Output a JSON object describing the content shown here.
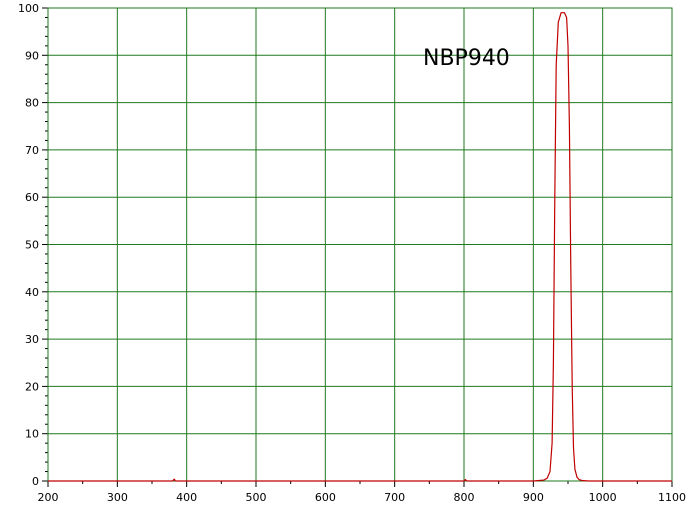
{
  "chart_data": {
    "type": "line",
    "title": "",
    "xlabel": "",
    "ylabel": "",
    "xlim": [
      200,
      1100
    ],
    "ylim": [
      0,
      100
    ],
    "x_ticks": [
      200,
      300,
      400,
      500,
      600,
      700,
      800,
      900,
      1000,
      1100
    ],
    "y_ticks": [
      0,
      10,
      20,
      30,
      40,
      50,
      60,
      70,
      80,
      90,
      100
    ],
    "x_tick_labels": [
      "200",
      "300",
      "400",
      "500",
      "600",
      "700",
      "800",
      "900",
      "1000",
      "1100"
    ],
    "y_tick_labels": [
      "0",
      "10",
      "20",
      "30",
      "40",
      "50",
      "60",
      "70",
      "80",
      "90",
      "100"
    ],
    "grid": true,
    "legend": "none",
    "annotation": "NBP940",
    "colors": {
      "grid": "#1e7a1e",
      "series": "#c00000",
      "frame": "#1e7a1e"
    },
    "series": [
      {
        "values": [
          [
            200,
            0
          ],
          [
            380,
            0
          ],
          [
            382,
            0.4
          ],
          [
            384,
            0
          ],
          [
            800,
            0
          ],
          [
            802,
            0.3
          ],
          [
            804,
            0
          ],
          [
            900,
            0
          ],
          [
            915,
            0.2
          ],
          [
            920,
            0.6
          ],
          [
            924,
            2
          ],
          [
            927,
            8
          ],
          [
            929,
            25
          ],
          [
            931,
            60
          ],
          [
            933,
            88
          ],
          [
            936,
            97
          ],
          [
            940,
            99
          ],
          [
            945,
            99
          ],
          [
            948,
            98
          ],
          [
            950,
            92
          ],
          [
            952,
            75
          ],
          [
            954,
            45
          ],
          [
            956,
            20
          ],
          [
            958,
            7
          ],
          [
            960,
            2.5
          ],
          [
            963,
            0.8
          ],
          [
            966,
            0.3
          ],
          [
            970,
            0.1
          ],
          [
            980,
            0
          ],
          [
            1100,
            0
          ]
        ]
      }
    ]
  }
}
